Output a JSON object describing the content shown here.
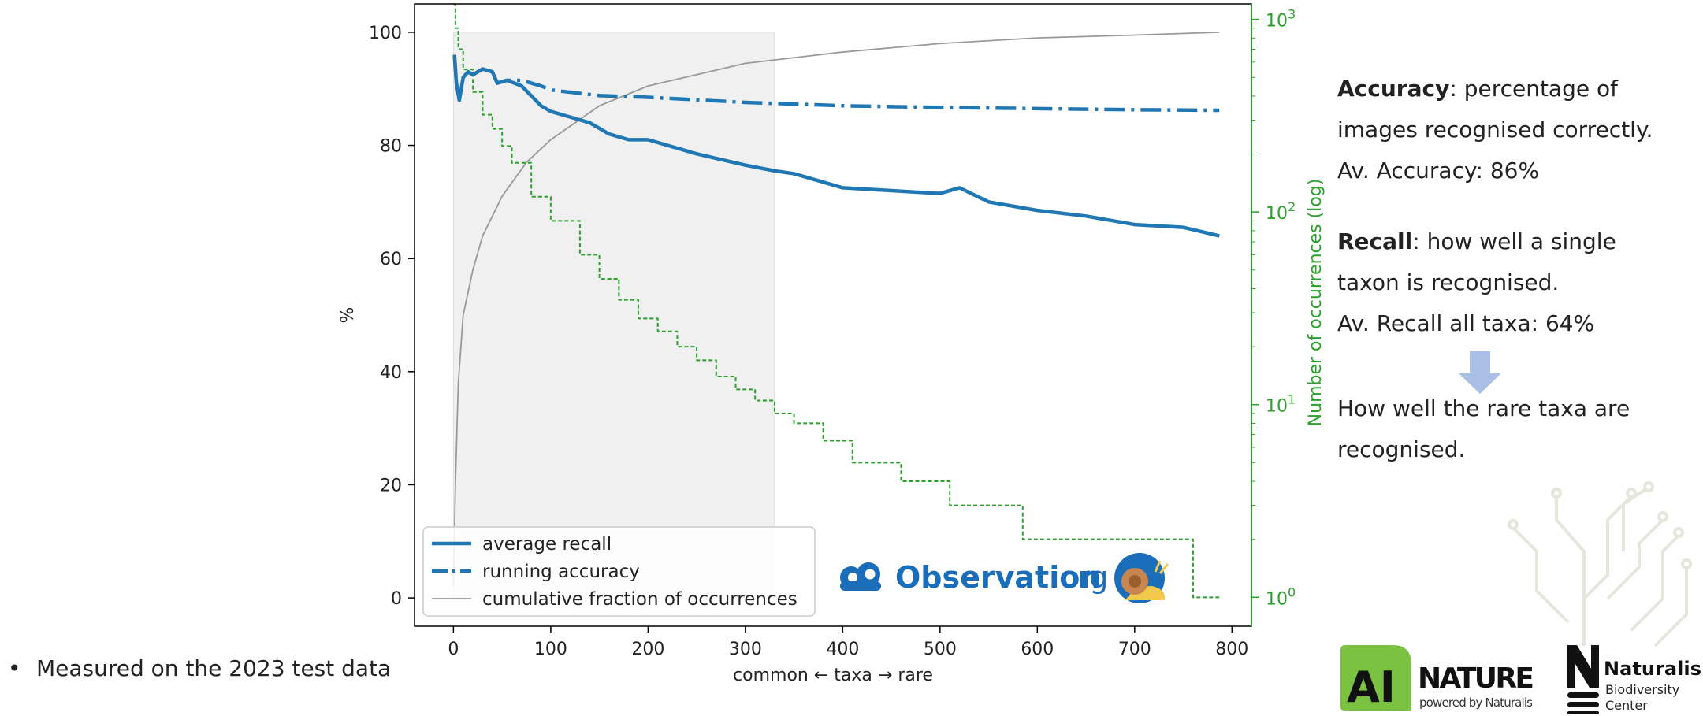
{
  "side_panel": {
    "accuracy_term": "Accuracy",
    "accuracy_def_1": ": percentage of",
    "accuracy_def_2": "images recognised correctly.",
    "accuracy_avg": "Av. Accuracy: 86%",
    "recall_term": "Recall",
    "recall_def_1": ": how well a single",
    "recall_def_2": "taxon is recognised.",
    "recall_avg": "Av. Recall all taxa: 64%",
    "rare_1": "How well the rare taxa are",
    "rare_2": "recognised."
  },
  "bullet": {
    "marker": "•",
    "text": "Measured on the 2023 test data"
  },
  "logos": {
    "observation_main": "Observation",
    "observation_suffix": ".org",
    "ai": "AI",
    "nature": "NATURE",
    "powered_by": "powered by Naturalis",
    "naturalis": "Naturalis",
    "biodiversity": "Biodiversity",
    "center": "Center"
  },
  "colors": {
    "recall": "#1f77b4",
    "accuracy": "#1f77b4",
    "cumulative": "#999999",
    "occurrences": "#2ca02c",
    "shade": "#f0f0f0",
    "arrow": "#a9bfe6",
    "ai_green": "#7cc242",
    "naturalis_black": "#111111"
  },
  "chart_data": {
    "type": "line",
    "xlabel": "common ← taxa → rare",
    "ylabel": "%",
    "y2label": "Number of occurrences (log)",
    "xlim": [
      -40,
      820
    ],
    "ylim": [
      -5,
      105
    ],
    "y2lim_log10": [
      -0.15,
      3.08
    ],
    "x_ticks": [
      0,
      100,
      200,
      300,
      400,
      500,
      600,
      700,
      800
    ],
    "y_ticks": [
      0,
      20,
      40,
      60,
      80,
      100
    ],
    "y2_ticks": [
      {
        "base": "10",
        "exp": "0",
        "value": 1
      },
      {
        "base": "10",
        "exp": "1",
        "value": 10
      },
      {
        "base": "10",
        "exp": "2",
        "value": 100
      },
      {
        "base": "10",
        "exp": "3",
        "value": 1000
      }
    ],
    "shaded_region_x": [
      0,
      330
    ],
    "legend": {
      "placement": "bottom-left"
    },
    "series": [
      {
        "name": "average recall",
        "style": "solid",
        "x": [
          1,
          3,
          6,
          10,
          15,
          20,
          30,
          40,
          45,
          55,
          70,
          90,
          100,
          120,
          140,
          160,
          180,
          200,
          250,
          300,
          330,
          350,
          400,
          450,
          500,
          520,
          550,
          600,
          650,
          700,
          750,
          787
        ],
        "y": [
          96,
          91,
          88,
          92,
          93,
          92.5,
          93.5,
          93,
          91,
          91.5,
          90.5,
          87,
          86,
          85,
          84,
          82,
          81,
          81,
          78.5,
          76.5,
          75.5,
          75,
          72.5,
          72,
          71.5,
          72.5,
          70,
          68.5,
          67.5,
          66,
          65.5,
          64
        ]
      },
      {
        "name": "running accuracy",
        "style": "dashdot",
        "x": [
          1,
          3,
          6,
          10,
          15,
          20,
          30,
          40,
          45,
          55,
          70,
          90,
          100,
          150,
          200,
          300,
          400,
          500,
          600,
          700,
          787
        ],
        "y": [
          96,
          91,
          88,
          92,
          93,
          92.5,
          93.5,
          93,
          91,
          91.5,
          91.5,
          90.5,
          89.8,
          88.8,
          88.5,
          87.6,
          87,
          86.7,
          86.5,
          86.3,
          86.2
        ]
      },
      {
        "name": "cumulative fraction of occurrences",
        "style": "thin",
        "x": [
          0,
          2,
          5,
          10,
          20,
          30,
          50,
          75,
          100,
          150,
          200,
          250,
          300,
          400,
          500,
          600,
          700,
          787
        ],
        "y": [
          2,
          20,
          38,
          50,
          58,
          64,
          71,
          77,
          81,
          87,
          90.5,
          92.5,
          94.5,
          96.5,
          98,
          99,
          99.5,
          100
        ]
      },
      {
        "name": "",
        "axis": "right",
        "style": "dashed-step",
        "x": [
          0,
          2,
          5,
          10,
          20,
          30,
          40,
          50,
          60,
          80,
          100,
          130,
          150,
          170,
          190,
          210,
          230,
          250,
          270,
          290,
          310,
          330,
          350,
          380,
          410,
          460,
          510,
          585,
          760,
          787
        ],
        "y": [
          1200,
          900,
          700,
          550,
          420,
          320,
          270,
          220,
          180,
          120,
          90,
          60,
          45,
          35,
          28,
          24,
          20,
          17,
          14,
          12,
          10.5,
          9,
          8,
          6.5,
          5,
          4,
          3,
          2,
          1,
          1
        ]
      }
    ]
  }
}
